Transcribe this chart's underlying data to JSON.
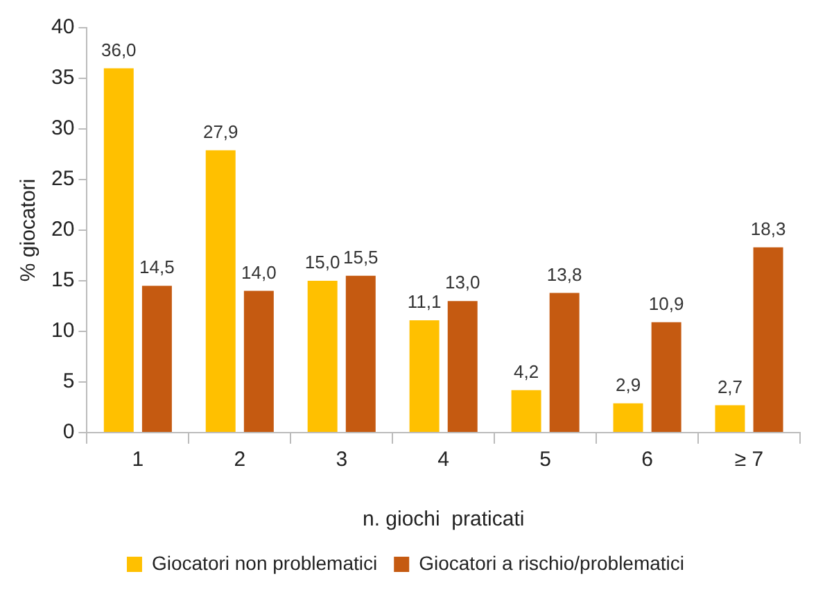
{
  "chart_data": {
    "type": "bar",
    "xlabel": "n. giochi  praticati",
    "ylabel": "% giocatori",
    "categories": [
      "1",
      "2",
      "3",
      "4",
      "5",
      "6",
      "≥ 7"
    ],
    "series": [
      {
        "name": "Giocatori non problematici",
        "color": "#ffc000",
        "values": [
          36.0,
          27.9,
          15.0,
          11.1,
          4.2,
          2.9,
          2.7
        ],
        "value_labels": [
          "36,0",
          "27,9",
          "15,0",
          "11,1",
          "4,2",
          "2,9",
          "2,7"
        ]
      },
      {
        "name": "Giocatori a rischio/problematici",
        "color": "#c55a11",
        "values": [
          14.5,
          14.0,
          15.5,
          13.0,
          13.8,
          10.9,
          18.3
        ],
        "value_labels": [
          "14,5",
          "14,0",
          "15,5",
          "13,0",
          "13,8",
          "10,9",
          "18,3"
        ]
      }
    ],
    "ylim": [
      0,
      40
    ],
    "yticks": [
      0,
      5,
      10,
      15,
      20,
      25,
      30,
      35,
      40
    ],
    "grid": false,
    "legend": "bottom"
  }
}
